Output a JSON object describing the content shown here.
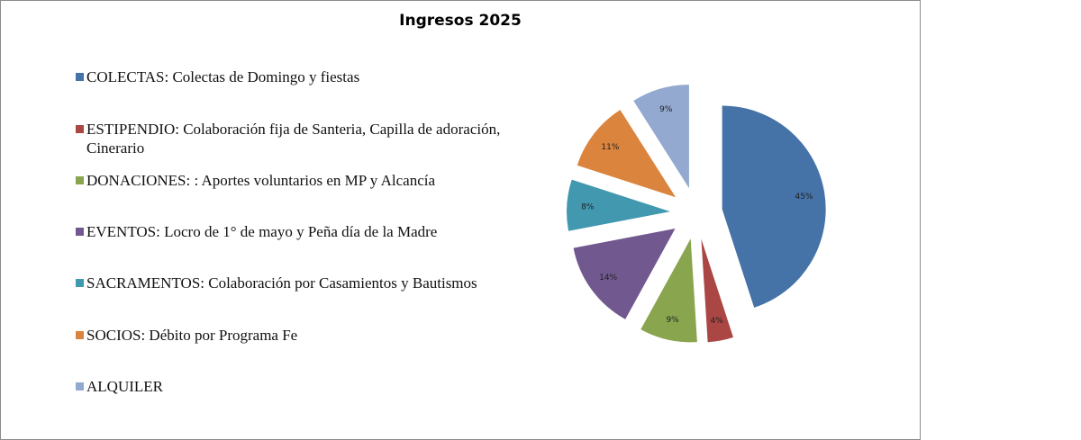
{
  "chart_data": {
    "type": "pie",
    "title": "Ingresos 2025",
    "exploded": true,
    "legend_position": "left",
    "slices": [
      {
        "name": "COLECTAS: Colectas de Domingo y fiestas",
        "value": 45,
        "label": "45%",
        "color": "#4572a7"
      },
      {
        "name": "ESTIPENDIO: Colaboración fija de Santeria, Capilla de adoración, Cinerario",
        "value": 4,
        "label": "4%",
        "color": "#aa4643"
      },
      {
        "name": "DONACIONES: : Aportes voluntarios en MP y Alcancía",
        "value": 9,
        "label": "9%",
        "color": "#89a54e"
      },
      {
        "name": "EVENTOS: Locro de 1° de mayo y Peña día de la Madre",
        "value": 14,
        "label": "14%",
        "color": "#71588f"
      },
      {
        "name": "SACRAMENTOS: Colaboración por Casamientos y Bautismos",
        "value": 8,
        "label": "8%",
        "color": "#4198af"
      },
      {
        "name": "SOCIOS: Débito por Programa Fe",
        "value": 11,
        "label": "11%",
        "color": "#db843d"
      },
      {
        "name": "ALQUILER",
        "value": 9,
        "label": "9%",
        "color": "#93a9cf"
      }
    ]
  }
}
